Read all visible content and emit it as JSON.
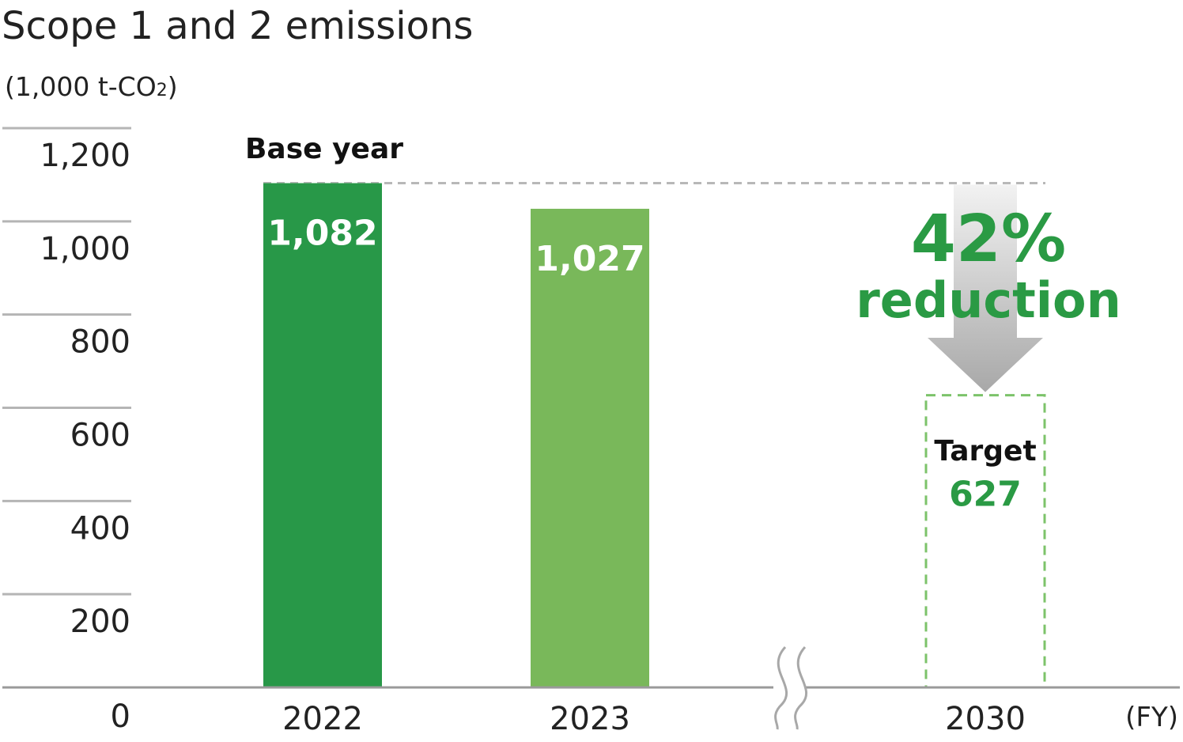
{
  "chart_data": {
    "type": "bar",
    "title": "Scope 1 and 2 emissions",
    "unit_prefix": "(1,000 t-CO",
    "unit_sub": "2",
    "unit_suffix": ")",
    "xlabel": "(FY)",
    "ylim": [
      0,
      1200
    ],
    "yticks": [
      0,
      200,
      400,
      600,
      800,
      1000,
      1200
    ],
    "ytick_labels": [
      "0",
      "200",
      "400",
      "600",
      "800",
      "1,000",
      "1,200"
    ],
    "categories": [
      "2022",
      "2023",
      "2030"
    ],
    "values": [
      1082,
      1027,
      627
    ],
    "value_labels": [
      "1,082",
      "1,027",
      "627"
    ],
    "bar_styles": [
      "solid",
      "solid",
      "dashed-outline"
    ],
    "bar_colors": [
      "#289848",
      "#79b85a",
      "#7cc36a"
    ],
    "annotations": {
      "base_year": "Base year",
      "target": "Target",
      "reduction_pct": "42%",
      "reduction_text": "reduction"
    },
    "axis_break_between": [
      "2023",
      "2030"
    ]
  },
  "colors": {
    "grid": "#b5b5b5",
    "axis": "#9a9a9a",
    "accent_green": "#2a9a44"
  }
}
